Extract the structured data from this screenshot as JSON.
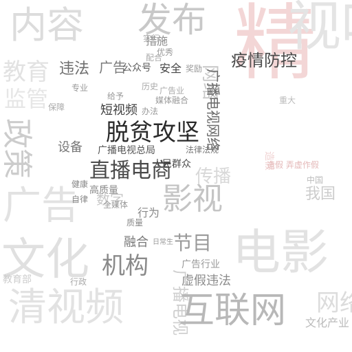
{
  "words": [
    {
      "text": "内容",
      "color": "#dcdcdc"
    },
    {
      "text": "发布",
      "color": "#c8c8c8"
    },
    {
      "text": "精",
      "color": "#f3d6d6"
    },
    {
      "text": "视听",
      "color": "#e4e4e4"
    },
    {
      "text": "教育",
      "color": "#e2e2e2"
    },
    {
      "text": "违法",
      "color": "#6e6e6e"
    },
    {
      "text": "广告",
      "color": "#7a7a7a"
    },
    {
      "text": "措施",
      "color": "#8a8a8a"
    },
    {
      "text": "公众号",
      "color": "#5a5a5a"
    },
    {
      "text": "安全",
      "color": "#444444"
    },
    {
      "text": "疫情防控",
      "color": "#4a4a4a"
    },
    {
      "text": "监管",
      "color": "#e6e6e6"
    },
    {
      "text": "政策",
      "color": "#cccccc"
    },
    {
      "text": "网络",
      "color": "#c8c8c8"
    },
    {
      "text": "短视频",
      "color": "#3e3e3e"
    },
    {
      "text": "脱贫攻坚",
      "color": "#2a2a2a"
    },
    {
      "text": "广播电视网络",
      "color": "#6a6a6a"
    },
    {
      "text": "设备",
      "color": "#777777"
    },
    {
      "text": "直播电商",
      "color": "#4a4a4a"
    },
    {
      "text": "广播电视总局",
      "color": "#555555"
    },
    {
      "text": "人民群众",
      "color": "#4a4a4a"
    },
    {
      "text": "传播",
      "color": "#d8d8d8"
    },
    {
      "text": "造假",
      "color": "#f0d2d2"
    },
    {
      "text": "广告",
      "color": "#e2e2e2"
    },
    {
      "text": "影视",
      "color": "#c4c4c4"
    },
    {
      "text": "数字",
      "color": "#c8c8c8"
    },
    {
      "text": "行为",
      "color": "#8a8a8a"
    },
    {
      "text": "我国",
      "color": "#cccccc"
    },
    {
      "text": "文化",
      "color": "#e0e0e0"
    },
    {
      "text": "融合",
      "color": "#777777"
    },
    {
      "text": "节目",
      "color": "#999999"
    },
    {
      "text": "电影",
      "color": "#e2e2e2"
    },
    {
      "text": "机构",
      "color": "#8a8a8a"
    },
    {
      "text": "广告行业",
      "color": "#999999"
    },
    {
      "text": "虚假违法",
      "color": "#8a8a8a"
    },
    {
      "text": "清视频",
      "color": "#e2e2e2"
    },
    {
      "text": "广播电视",
      "color": "#cfcfcf"
    },
    {
      "text": "互联网",
      "color": "#b8b8b8"
    },
    {
      "text": "网络",
      "color": "#dcdcdc"
    },
    {
      "text": "文化产业",
      "color": "#bbbbbb"
    },
    {
      "text": "造假 弄虚作假",
      "color": "#e4b8b8"
    },
    {
      "text": "媒体融合",
      "color": "#999999"
    },
    {
      "text": "法律法规",
      "color": "#777777"
    },
    {
      "text": "高质量",
      "color": "#8a8a8a"
    },
    {
      "text": "健康",
      "color": "#888888"
    },
    {
      "text": "自律",
      "color": "#888888"
    },
    {
      "text": "质量",
      "color": "#8a8a8a"
    },
    {
      "text": "日常生",
      "color": "#999999"
    },
    {
      "text": "给予",
      "color": "#999999"
    },
    {
      "text": "办法",
      "color": "#999999"
    },
    {
      "text": "专业",
      "color": "#999999"
    },
    {
      "text": "保障",
      "color": "#aaaaaa"
    },
    {
      "text": "奖励",
      "color": "#999999"
    },
    {
      "text": "优秀",
      "color": "#999999"
    },
    {
      "text": "广告业",
      "color": "#aaaaaa"
    },
    {
      "text": "历史",
      "color": "#aaaaaa"
    },
    {
      "text": "全媒体",
      "color": "#999999"
    },
    {
      "text": "行政",
      "color": "#aaaaaa"
    },
    {
      "text": "教育部",
      "color": "#cccccc"
    },
    {
      "text": "重大",
      "color": "#bbbbbb"
    },
    {
      "text": "实行",
      "color": "#aaaaaa"
    },
    {
      "text": "配合",
      "color": "#aaaaaa"
    },
    {
      "text": "中国",
      "color": "#bbbbbb"
    }
  ]
}
